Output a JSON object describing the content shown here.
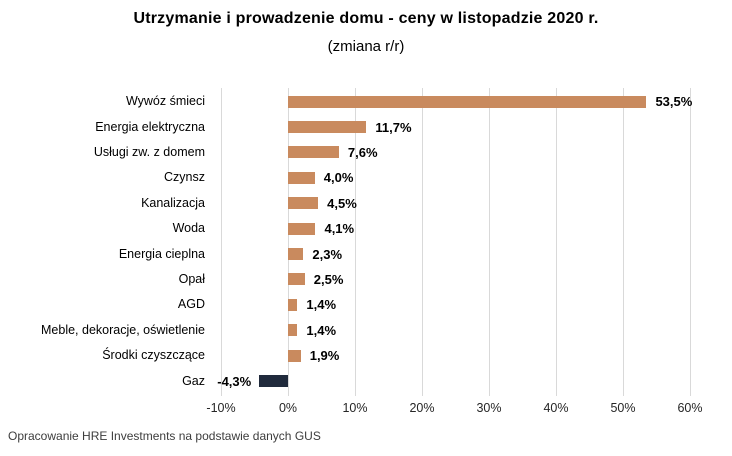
{
  "header": {
    "title": "Utrzymanie i prowadzenie domu - ceny w listopadzie 2020 r.",
    "subtitle": "(zmiana r/r)"
  },
  "footer": {
    "source": "Opracowanie HRE Investments na podstawie danych GUS"
  },
  "chart_data": {
    "type": "bar",
    "orientation": "horizontal",
    "title": "Utrzymanie i prowadzenie domu - ceny w listopadzie 2020 r.",
    "subtitle": "(zmiana r/r)",
    "categories": [
      "Wywóz śmieci",
      "Energia elektryczna",
      "Usługi zw. z domem",
      "Czynsz",
      "Kanalizacja",
      "Woda",
      "Energia cieplna",
      "Opał",
      "AGD",
      "Meble, dekoracje, oświetlenie",
      "Środki czyszczące",
      "Gaz"
    ],
    "values": [
      53.5,
      11.7,
      7.6,
      4.0,
      4.5,
      4.1,
      2.3,
      2.5,
      1.4,
      1.4,
      1.9,
      -4.3
    ],
    "value_labels": [
      "53,5%",
      "11,7%",
      "7,6%",
      "4,0%",
      "4,5%",
      "4,1%",
      "2,3%",
      "2,5%",
      "1,4%",
      "1,4%",
      "1,9%",
      "-4,3%"
    ],
    "xlim": [
      -10,
      60
    ],
    "x_ticks": [
      -10,
      0,
      10,
      20,
      30,
      40,
      50,
      60
    ],
    "x_tick_labels": [
      "-10%",
      "0%",
      "10%",
      "20%",
      "30%",
      "40%",
      "50%",
      "60%"
    ],
    "grid": "vertical",
    "legend": "none",
    "colors": {
      "bar_positive": "#C98A5E",
      "bar_negative": "#202A3C",
      "gridline": "#D9D9D9",
      "background": "#FFFFFF"
    }
  }
}
